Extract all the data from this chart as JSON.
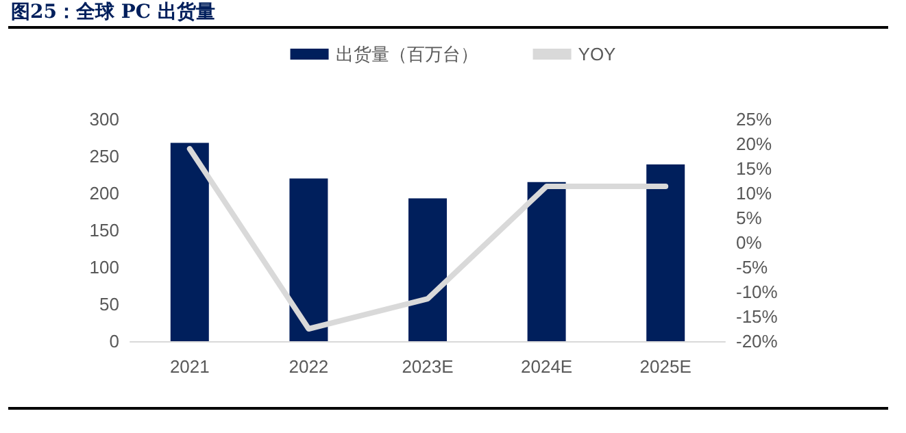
{
  "chart_data": {
    "type": "bar",
    "title": "图25：全球 PC 出货量",
    "categories": [
      "2021",
      "2022",
      "2023E",
      "2024E",
      "2025E"
    ],
    "series": [
      {
        "name": "出货量（百万台）",
        "color": "#001f5c",
        "values": [
          268,
          220,
          193,
          215,
          239
        ]
      },
      {
        "name": "YOY",
        "type": "line",
        "axis": "y2",
        "color": "#d9d9d9",
        "values": [
          19,
          -17.5,
          -11.4,
          11.4,
          11.4
        ]
      }
    ],
    "ylim": [
      0,
      300
    ],
    "yticks": [
      0,
      50,
      100,
      150,
      200,
      250,
      300
    ],
    "y2lim": [
      -20,
      25
    ],
    "y2ticks": [
      {
        "value": -20,
        "label": "-20%"
      },
      {
        "value": -15,
        "label": "-15%"
      },
      {
        "value": -10,
        "label": "-10%"
      },
      {
        "value": -5,
        "label": "-5%"
      },
      {
        "value": 0,
        "label": "0%"
      },
      {
        "value": 5,
        "label": "5%"
      },
      {
        "value": 10,
        "label": "10%"
      },
      {
        "value": 15,
        "label": "15%"
      },
      {
        "value": 20,
        "label": "20%"
      },
      {
        "value": 25,
        "label": "25%"
      }
    ],
    "grid": false,
    "legend": "top",
    "marker": "none"
  }
}
